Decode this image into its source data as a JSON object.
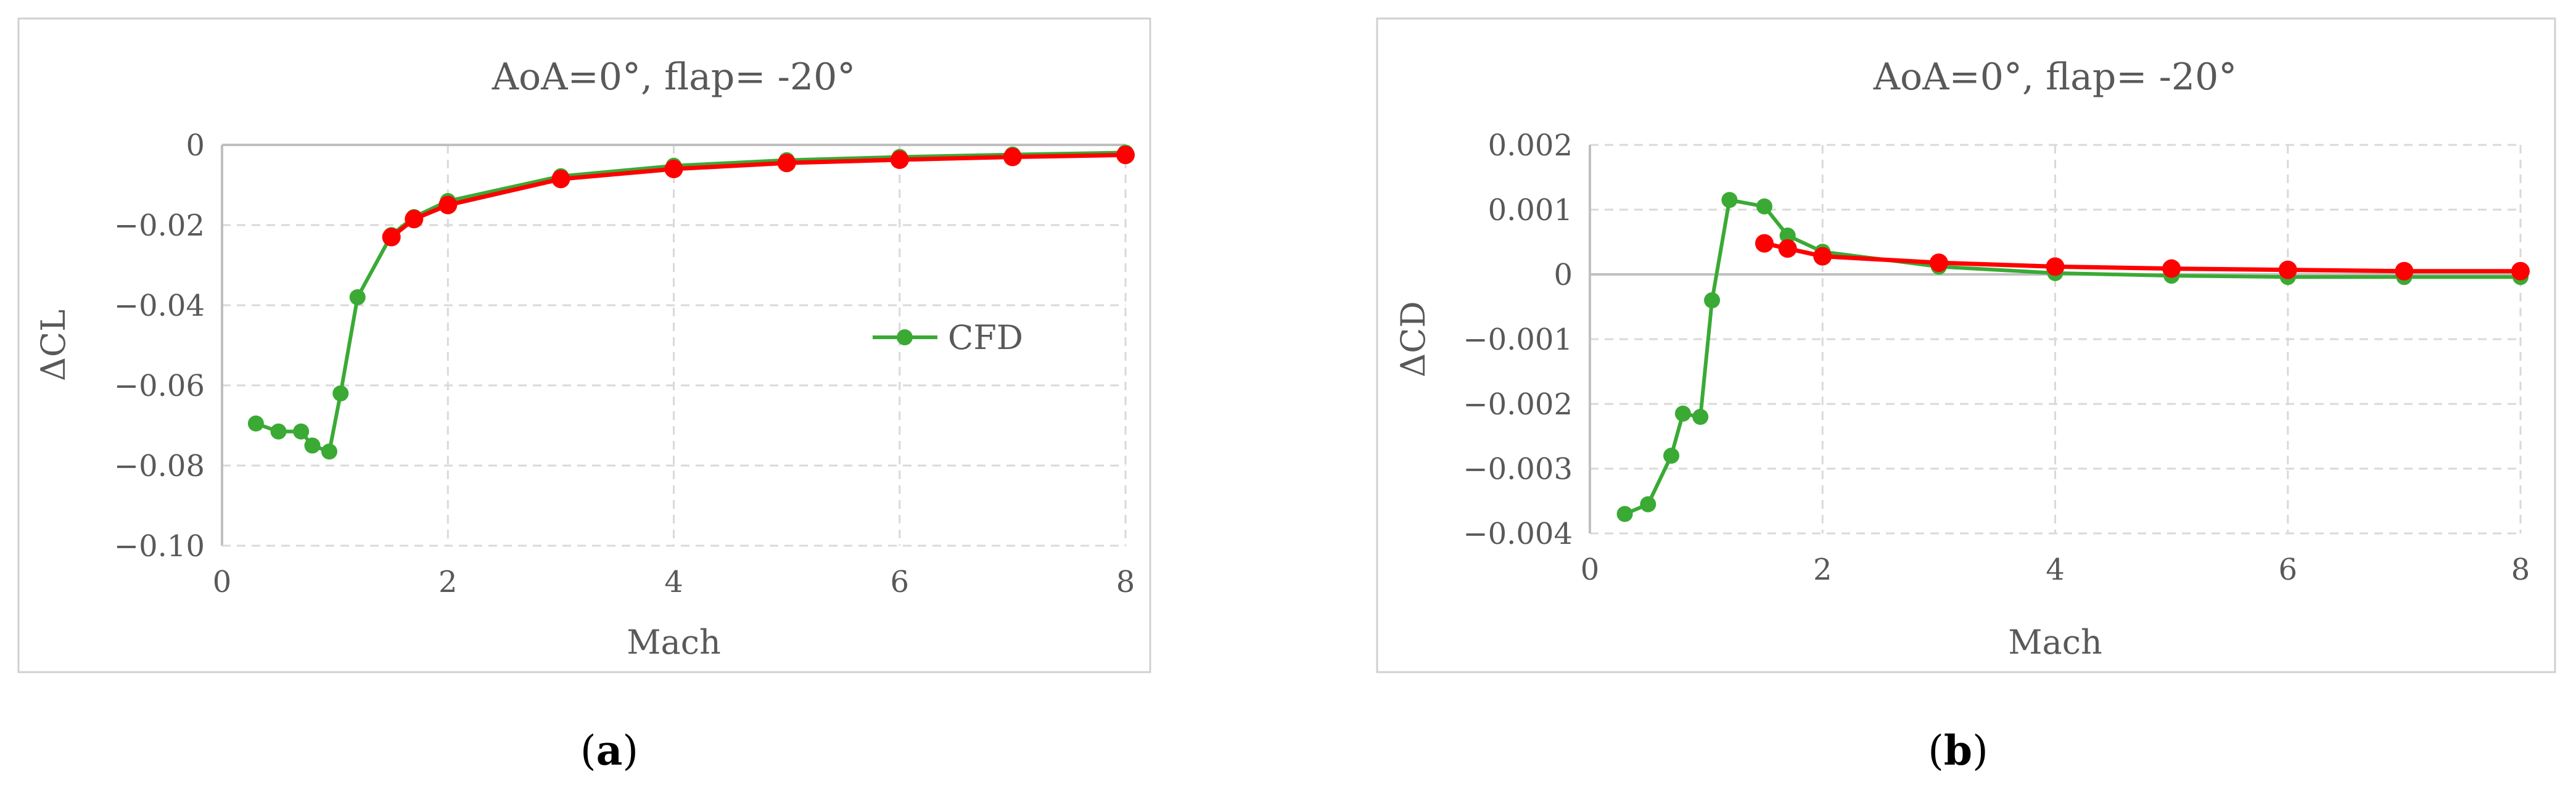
{
  "colors": {
    "cfd": "#3aaa35",
    "ref": "#ff0000"
  },
  "chart_data": [
    {
      "type": "line",
      "title": "AoA=0°, flap= -20°",
      "xlabel": "Mach",
      "ylabel": "ΔCL",
      "xlim": [
        0,
        8
      ],
      "ylim": [
        -0.1,
        0
      ],
      "xticks": [
        0,
        2,
        4,
        6,
        8
      ],
      "xtick_labels": [
        "0",
        "2",
        "4",
        "6",
        "8"
      ],
      "yticks": [
        0,
        -0.02,
        -0.04,
        -0.06,
        -0.08,
        -0.1
      ],
      "ytick_labels": [
        "0",
        "−0.02",
        "−0.04",
        "−0.06",
        "−0.08",
        "−0.10"
      ],
      "grid": true,
      "legend_position": "center-right",
      "caption_label": "a",
      "series": [
        {
          "name": "CFD",
          "color": "#3aaa35",
          "x": [
            0.3,
            0.5,
            0.7,
            0.8,
            0.95,
            1.05,
            1.2,
            1.5,
            1.7,
            2,
            3,
            4,
            5,
            6,
            7,
            8
          ],
          "y": [
            -0.0695,
            -0.0715,
            -0.0715,
            -0.075,
            -0.0765,
            -0.062,
            -0.038,
            -0.0225,
            -0.018,
            -0.014,
            -0.0078,
            -0.0052,
            -0.0038,
            -0.003,
            -0.0024,
            -0.0019
          ]
        },
        {
          "color": "#ff0000",
          "x": [
            1.5,
            1.7,
            2,
            3,
            4,
            5,
            6,
            7,
            8
          ],
          "y": [
            -0.023,
            -0.0185,
            -0.015,
            -0.0085,
            -0.006,
            -0.0045,
            -0.0037,
            -0.003,
            -0.0025
          ]
        }
      ]
    },
    {
      "type": "line",
      "title": "AoA=0°, flap= -20°",
      "xlabel": "Mach",
      "ylabel": "ΔCD",
      "xlim": [
        0,
        8
      ],
      "ylim": [
        -0.004,
        0.002
      ],
      "xticks": [
        0,
        2,
        4,
        6,
        8
      ],
      "xtick_labels": [
        "0",
        "2",
        "4",
        "6",
        "8"
      ],
      "yticks": [
        0.002,
        0.001,
        0,
        -0.001,
        -0.002,
        -0.003,
        -0.004
      ],
      "ytick_labels": [
        "0.002",
        "0.001",
        "0",
        "−0.001",
        "−0.002",
        "−0.003",
        "−0.004"
      ],
      "grid": true,
      "caption_label": "b",
      "series": [
        {
          "color": "#3aaa35",
          "x": [
            0.3,
            0.5,
            0.7,
            0.8,
            0.95,
            1.05,
            1.2,
            1.5,
            1.7,
            2,
            3,
            4,
            5,
            6,
            7,
            8
          ],
          "y": [
            -0.0037,
            -0.00355,
            -0.0028,
            -0.00215,
            -0.0022,
            -0.0004,
            0.00115,
            0.00105,
            0.0006,
            0.00035,
            0.00012,
            2e-05,
            -2e-05,
            -4e-05,
            -4e-05,
            -4e-05
          ]
        },
        {
          "color": "#ff0000",
          "x": [
            1.5,
            1.7,
            2,
            3,
            4,
            5,
            6,
            7,
            8
          ],
          "y": [
            0.00048,
            0.0004,
            0.00028,
            0.00018,
            0.00012,
            9e-05,
            7e-05,
            5e-05,
            5e-05
          ]
        }
      ]
    }
  ]
}
